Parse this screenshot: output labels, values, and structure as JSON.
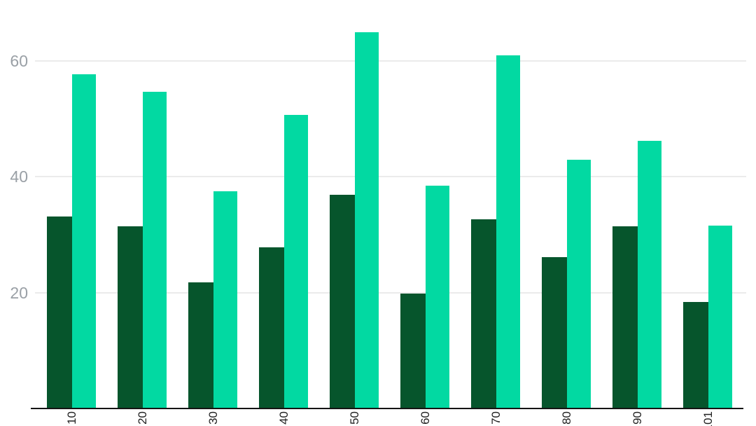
{
  "chart_data": {
    "type": "bar",
    "title": "",
    "xlabel": "",
    "ylabel": "",
    "categories": [
      "10",
      "20",
      "30",
      "40",
      "50",
      "60",
      "70",
      "80",
      "90",
      "101"
    ],
    "series": [
      {
        "name": "dark-green",
        "color": "#06552c",
        "values": [
          33.1,
          31.4,
          21.8,
          27.8,
          36.9,
          19.8,
          32.6,
          26.1,
          31.4,
          18.4
        ]
      },
      {
        "name": "spring-green",
        "color": "#02d9a2",
        "values": [
          57.7,
          54.7,
          37.5,
          50.7,
          64.9,
          38.5,
          60.9,
          42.9,
          46.2,
          31.6
        ]
      }
    ],
    "yticks": [
      20,
      40,
      60
    ],
    "ylim": [
      0,
      70
    ],
    "grid": true,
    "legend": false,
    "x_tick_rotation": 90
  },
  "style": {
    "grid_color": "#ebebeb",
    "axis_color": "#141414",
    "y_tick_color": "#9aa0a6",
    "x_tick_color": "#212121",
    "background": "#ffffff"
  }
}
